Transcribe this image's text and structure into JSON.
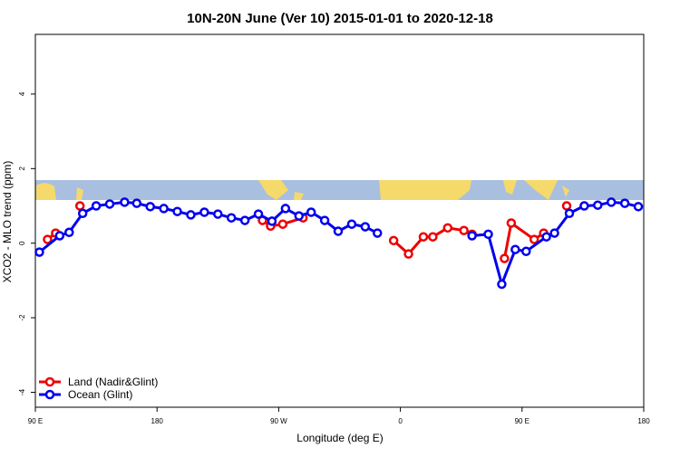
{
  "chart_data": {
    "type": "line",
    "title": "10N-20N June (Ver 10)   2015-01-01 to 2020-12-18",
    "x_label": "Longitude (deg E)",
    "y_label": "XCO2 - MLO trend (ppm)",
    "xlim": [
      90,
      540
    ],
    "ylim": [
      -4.4,
      5.6
    ],
    "xticks": [
      {
        "value": 90,
        "label": "90 E"
      },
      180,
      {
        "value": 270,
        "label": "90 W"
      },
      {
        "value": 360,
        "label": "0"
      },
      {
        "value": 450,
        "label": "90 E"
      },
      {
        "value": 540,
        "label": "180"
      }
    ],
    "yticks": [
      -4,
      -2,
      0,
      2,
      4
    ],
    "legend": "bottom-left",
    "series": [
      {
        "name": "Land (Nadir&Glint)",
        "color": "#ee0000",
        "x": [
          99,
          105,
          114,
          123,
          190,
          258,
          264,
          273,
          288,
          320,
          355,
          366,
          377,
          384,
          395,
          407,
          413,
          425,
          437,
          442,
          459,
          466,
          475,
          483
        ],
        "values": [
          0.1,
          0.27,
          null,
          1.0,
          null,
          0.61,
          0.46,
          0.51,
          0.68,
          null,
          0.07,
          -0.29,
          0.17,
          0.17,
          0.41,
          0.34,
          0.24,
          null,
          -0.41,
          0.54,
          0.1,
          0.27,
          null,
          1.0
        ]
      },
      {
        "name": "Ocean (Glint)",
        "color": "#0000ee",
        "x": [
          93,
          108,
          115,
          125,
          135,
          145,
          156,
          165,
          175,
          185,
          195,
          205,
          215,
          225,
          235,
          245,
          255,
          265,
          275,
          285,
          294,
          304,
          314,
          324,
          334,
          343,
          380,
          413,
          425,
          435,
          445,
          453,
          468,
          474,
          485,
          496,
          506,
          516,
          526,
          536
        ],
        "values": [
          -0.24,
          0.2,
          0.29,
          0.8,
          1.0,
          1.05,
          1.1,
          1.07,
          0.98,
          0.93,
          0.85,
          0.76,
          0.83,
          0.78,
          0.68,
          0.61,
          0.78,
          0.59,
          0.93,
          0.73,
          0.83,
          0.61,
          0.32,
          0.51,
          0.44,
          0.27,
          null,
          0.2,
          0.24,
          -1.1,
          -0.17,
          -0.22,
          0.17,
          0.27,
          0.8,
          1.0,
          1.02,
          1.1,
          1.07,
          0.98
        ]
      }
    ]
  }
}
